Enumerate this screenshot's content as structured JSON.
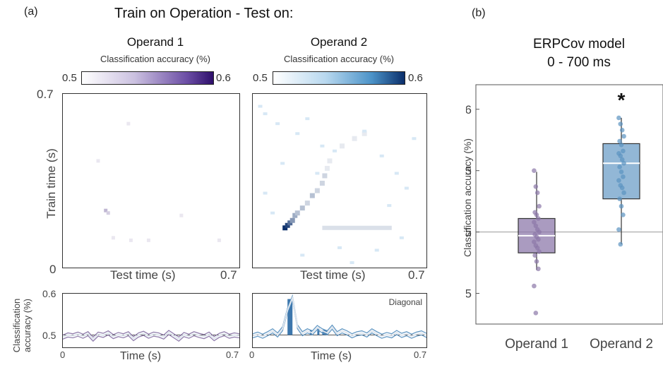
{
  "panel_a": {
    "letter": "(a)",
    "title": "Train on Operation - Test on:",
    "operand1": {
      "title": "Operand 1",
      "colorbar_label": "Classification accuracy (%)",
      "colorbar_min": "0.5",
      "colorbar_max": "0.6",
      "colormap": [
        "#ffffff",
        "#2e0f6b"
      ]
    },
    "operand2": {
      "title": "Operand 2",
      "colorbar_label": "Classification accuracy (%)",
      "colorbar_min": "0.5",
      "colorbar_max": "0.6",
      "colormap": [
        "#ffffff",
        "#0b2f6b"
      ]
    },
    "y_tick_top": "0.7",
    "y_tick_bottom": "0",
    "x_tick_right": "0.7",
    "ylabel": "Train time (s)",
    "xlabel": "Test time (s)",
    "bottom": {
      "ylabel": "Classification accuracy (%)",
      "ytick_top": "0.6",
      "ytick_mid": "0.5",
      "xtick_left": "0",
      "xtick_right": "0.7",
      "xlabel": "Time (s)",
      "diagonal_label": "Diagonal"
    }
  },
  "panel_b": {
    "letter": "(b)",
    "title_line1": "ERPCov model",
    "title_line2": "0 - 700 ms",
    "ylabel": "Classification accuracy (%)",
    "yticks": [
      "0.6",
      "0.55",
      "0.5",
      "0.45"
    ],
    "categories": [
      "Operand 1",
      "Operand 2"
    ],
    "significance": "*"
  },
  "colors": {
    "operand1": "#8b77a8",
    "operand1_box": "#8e7aab",
    "operand2": "#5b93c1",
    "operand2_box": "#6e9fc8",
    "operand2_dark": "#0d2f63",
    "chance_line": "#999999"
  },
  "chart_data": [
    {
      "type": "heatmap",
      "title": "Operand 1",
      "xlabel": "Test time (s)",
      "ylabel": "Train time (s)",
      "xlim": [
        0,
        0.7
      ],
      "ylim": [
        0,
        0.7
      ],
      "color_range": [
        0.5,
        0.6
      ],
      "cells": [
        {
          "x": 0.17,
          "y": 0.23,
          "value": 0.53
        },
        {
          "x": 0.18,
          "y": 0.22,
          "value": 0.52
        },
        {
          "x": 0.2,
          "y": 0.12,
          "value": 0.51
        },
        {
          "x": 0.27,
          "y": 0.11,
          "value": 0.51
        },
        {
          "x": 0.34,
          "y": 0.11,
          "value": 0.51
        },
        {
          "x": 0.47,
          "y": 0.21,
          "value": 0.51
        },
        {
          "x": 0.62,
          "y": 0.11,
          "value": 0.51
        },
        {
          "x": 0.14,
          "y": 0.43,
          "value": 0.51
        },
        {
          "x": 0.26,
          "y": 0.58,
          "value": 0.51
        }
      ]
    },
    {
      "type": "heatmap",
      "title": "Operand 2",
      "xlabel": "Test time (s)",
      "ylabel": "Train time (s)",
      "xlim": [
        0,
        0.7
      ],
      "ylim": [
        0,
        0.7
      ],
      "color_range": [
        0.5,
        0.6
      ],
      "diagonal_cluster": [
        {
          "x": 0.13,
          "y": 0.16,
          "value": 0.6
        },
        {
          "x": 0.14,
          "y": 0.17,
          "value": 0.59
        },
        {
          "x": 0.15,
          "y": 0.18,
          "value": 0.57
        },
        {
          "x": 0.16,
          "y": 0.19,
          "value": 0.55
        },
        {
          "x": 0.17,
          "y": 0.21,
          "value": 0.54
        },
        {
          "x": 0.18,
          "y": 0.22,
          "value": 0.53
        },
        {
          "x": 0.2,
          "y": 0.24,
          "value": 0.53
        },
        {
          "x": 0.22,
          "y": 0.26,
          "value": 0.52
        },
        {
          "x": 0.24,
          "y": 0.29,
          "value": 0.53
        },
        {
          "x": 0.26,
          "y": 0.31,
          "value": 0.52
        },
        {
          "x": 0.28,
          "y": 0.34,
          "value": 0.52
        },
        {
          "x": 0.29,
          "y": 0.37,
          "value": 0.52
        },
        {
          "x": 0.3,
          "y": 0.4,
          "value": 0.51
        },
        {
          "x": 0.31,
          "y": 0.43,
          "value": 0.51
        },
        {
          "x": 0.36,
          "y": 0.49,
          "value": 0.51
        },
        {
          "x": 0.41,
          "y": 0.52,
          "value": 0.51
        },
        {
          "x": 0.45,
          "y": 0.54,
          "value": 0.51
        }
      ],
      "offdiagonal_band": {
        "x": [
          0.28,
          0.56
        ],
        "y": 0.16,
        "value": 0.515
      }
    },
    {
      "type": "line",
      "title": "",
      "ylabel": "Classification accuracy (%)",
      "xlabel": "Time (s)",
      "xlim": [
        0,
        0.7
      ],
      "ylim": [
        0.47,
        0.6
      ],
      "chance": 0.5,
      "x": [
        0.0,
        0.02,
        0.04,
        0.06,
        0.08,
        0.1,
        0.12,
        0.14,
        0.16,
        0.18,
        0.2,
        0.22,
        0.24,
        0.26,
        0.28,
        0.3,
        0.32,
        0.34,
        0.36,
        0.38,
        0.4,
        0.42,
        0.44,
        0.46,
        0.48,
        0.5,
        0.52,
        0.54,
        0.56,
        0.58,
        0.6,
        0.62,
        0.64,
        0.66,
        0.68,
        0.7
      ],
      "series": [
        {
          "name": "Operand 1",
          "values": [
            0.495,
            0.5,
            0.498,
            0.502,
            0.497,
            0.503,
            0.49,
            0.502,
            0.499,
            0.505,
            0.496,
            0.501,
            0.498,
            0.503,
            0.491,
            0.5,
            0.504,
            0.497,
            0.502,
            0.5,
            0.495,
            0.506,
            0.498,
            0.49,
            0.501,
            0.497,
            0.503,
            0.499,
            0.496,
            0.502,
            0.491,
            0.499,
            0.503,
            0.497,
            0.5,
            0.498
          ]
        }
      ]
    },
    {
      "type": "line",
      "title": "",
      "xlabel": "Time (s)",
      "xlim": [
        0,
        0.7
      ],
      "ylim": [
        0.47,
        0.6
      ],
      "chance": 0.5,
      "annotation": "Diagonal",
      "x": [
        0.0,
        0.02,
        0.04,
        0.06,
        0.08,
        0.1,
        0.12,
        0.14,
        0.16,
        0.18,
        0.2,
        0.22,
        0.24,
        0.26,
        0.28,
        0.3,
        0.32,
        0.34,
        0.36,
        0.38,
        0.4,
        0.42,
        0.44,
        0.46,
        0.48,
        0.5,
        0.52,
        0.54,
        0.56,
        0.58,
        0.6,
        0.62,
        0.64,
        0.66,
        0.68,
        0.7
      ],
      "series": [
        {
          "name": "Operand 2",
          "values": [
            0.498,
            0.502,
            0.497,
            0.503,
            0.51,
            0.5,
            0.515,
            0.56,
            0.59,
            0.52,
            0.503,
            0.51,
            0.505,
            0.518,
            0.51,
            0.505,
            0.519,
            0.503,
            0.51,
            0.505,
            0.498,
            0.503,
            0.505,
            0.5,
            0.51,
            0.503,
            0.497,
            0.501,
            0.498,
            0.506,
            0.499,
            0.503,
            0.497,
            0.502,
            0.505,
            0.499
          ]
        }
      ],
      "significant_bars": [
        {
          "x_start": 0.14,
          "x_end": 0.16,
          "value": 0.587
        },
        {
          "x_start": 0.23,
          "x_end": 0.235,
          "value": 0.512
        },
        {
          "x_start": 0.26,
          "x_end": 0.265,
          "value": 0.518
        },
        {
          "x_start": 0.28,
          "x_end": 0.3,
          "value": 0.512
        }
      ]
    },
    {
      "type": "box",
      "title": "ERPCov model 0 - 700 ms",
      "ylabel": "Classification accuracy (%)",
      "ylim": [
        0.425,
        0.62
      ],
      "categories": [
        "Operand 1",
        "Operand 2"
      ],
      "chance": 0.5,
      "boxes": [
        {
          "name": "Operand 1",
          "q1": 0.483,
          "median": 0.497,
          "q3": 0.511,
          "whisker_low": 0.469,
          "whisker_high": 0.549,
          "points": [
            0.55,
            0.537,
            0.532,
            0.521,
            0.516,
            0.514,
            0.511,
            0.508,
            0.505,
            0.502,
            0.5,
            0.498,
            0.496,
            0.494,
            0.492,
            0.489,
            0.487,
            0.484,
            0.481,
            0.476,
            0.47,
            0.456,
            0.434
          ]
        },
        {
          "name": "Operand 2",
          "q1": 0.527,
          "median": 0.556,
          "q3": 0.572,
          "whisker_low": 0.49,
          "whisker_high": 0.593,
          "points": [
            0.593,
            0.588,
            0.583,
            0.578,
            0.574,
            0.571,
            0.566,
            0.564,
            0.562,
            0.559,
            0.556,
            0.553,
            0.549,
            0.545,
            0.542,
            0.538,
            0.536,
            0.532,
            0.527,
            0.521,
            0.514,
            0.502,
            0.49
          ]
        }
      ]
    }
  ]
}
